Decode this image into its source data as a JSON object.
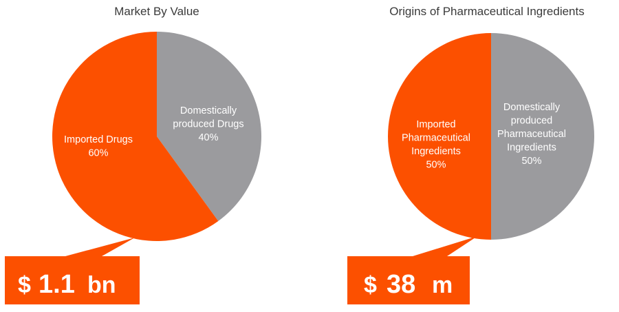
{
  "chart_data": [
    {
      "type": "pie",
      "title": "Market By Value",
      "slices": [
        {
          "label": [
            "Domestically",
            "produced Drugs",
            "40%"
          ],
          "value": 40,
          "color": "#9b9b9e"
        },
        {
          "label": [
            "Imported Drugs",
            "60%"
          ],
          "value": 60,
          "color": "#fc5000"
        }
      ],
      "callout": {
        "prefix": "$",
        "number": "1.1",
        "unit": "bn",
        "color": "#fc5000"
      }
    },
    {
      "type": "pie",
      "title": "Origins of Pharmaceutical Ingredients",
      "slices": [
        {
          "label": [
            "Domestically",
            "produced",
            "Pharmaceutical",
            "Ingredients",
            "50%"
          ],
          "value": 50,
          "color": "#9b9b9e"
        },
        {
          "label": [
            "Imported",
            "Pharmaceutical",
            "Ingredients",
            "50%"
          ],
          "value": 50,
          "color": "#fc5000"
        }
      ],
      "callout": {
        "prefix": "$",
        "number": "38",
        "unit": "m",
        "color": "#fc5000"
      }
    }
  ]
}
